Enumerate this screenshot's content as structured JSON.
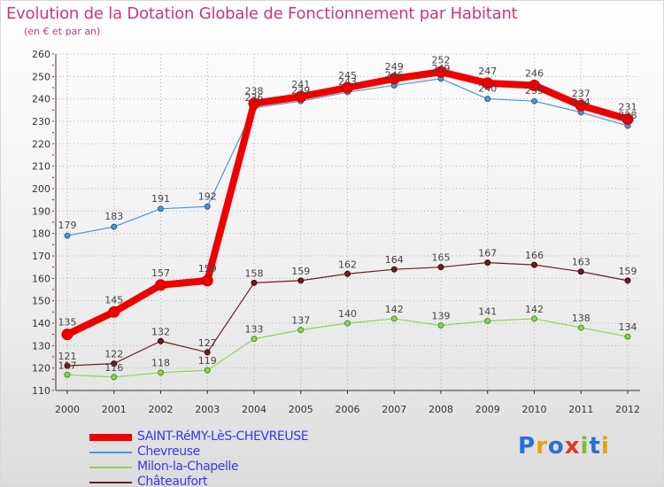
{
  "title": "Evolution de la Dotation Globale de Fonctionnement par Habitant",
  "subtitle": "(en € et par an)",
  "logo": {
    "text": "Proxiti",
    "colors": [
      "#2a6fd6",
      "#e8a400",
      "#2a6fd6",
      "#e03a1e",
      "#7fbf2a",
      "#2a6fd6",
      "#e8a400"
    ]
  },
  "chart_data": {
    "type": "line",
    "title": "Evolution de la Dotation Globale de Fonctionnement par Habitant",
    "subtitle": "(en € et par an)",
    "xlabel": "",
    "ylabel": "",
    "x": [
      2000,
      2001,
      2002,
      2003,
      2004,
      2005,
      2006,
      2007,
      2008,
      2009,
      2010,
      2011,
      2012
    ],
    "ylim": [
      110,
      260
    ],
    "yticks": [
      110,
      120,
      130,
      140,
      150,
      160,
      170,
      180,
      190,
      200,
      210,
      220,
      230,
      240,
      250,
      260
    ],
    "grid": true,
    "legend_position": "bottom-left",
    "series": [
      {
        "name": "SAINT-RéMY-LèS-CHEVREUSE",
        "color": "#ee0000",
        "values": [
          135,
          145,
          157,
          159,
          238,
          241,
          245,
          249,
          252,
          247,
          246,
          237,
          231
        ]
      },
      {
        "name": "Chevreuse",
        "color": "#4e96d6",
        "values": [
          179,
          183,
          191,
          192,
          236,
          239,
          243,
          246,
          249,
          240,
          239,
          234,
          228
        ]
      },
      {
        "name": "Milon-la-Chapelle",
        "color": "#8fd35a",
        "values": [
          117,
          116,
          118,
          119,
          133,
          137,
          140,
          142,
          139,
          141,
          142,
          138,
          134
        ]
      },
      {
        "name": "Châteaufort",
        "color": "#6b1f1f",
        "values": [
          121,
          122,
          132,
          127,
          158,
          159,
          162,
          164,
          165,
          167,
          166,
          163,
          159
        ]
      }
    ]
  }
}
